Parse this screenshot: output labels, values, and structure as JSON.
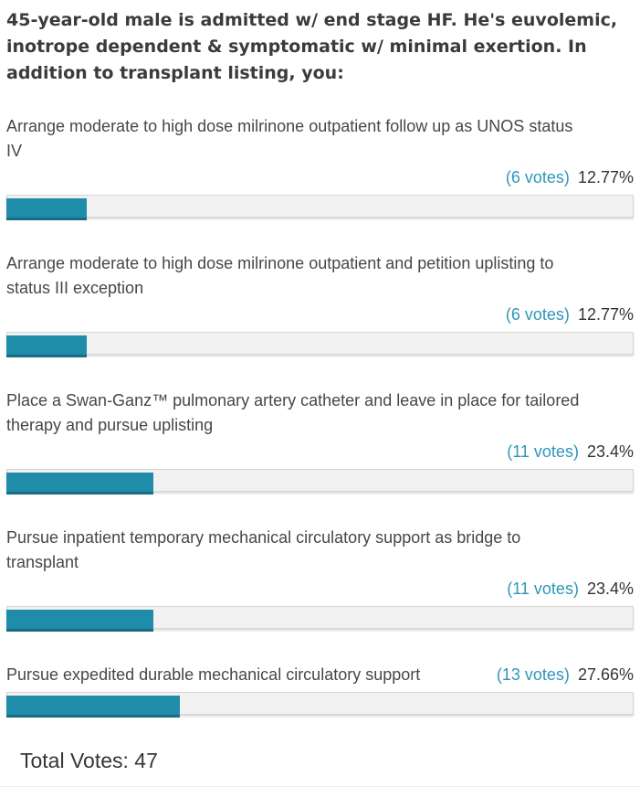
{
  "poll": {
    "question": "45-year-old male is admitted w/ end stage HF. He's euvolemic,\ninotrope dependent & symptomatic w/ minimal exertion. In\naddition to transplant listing, you:",
    "options": [
      {
        "text": "Arrange moderate to high dose milrinone outpatient follow up as UNOS status\nIV",
        "votes_label": "(6 votes)",
        "percent_label": "12.77%",
        "bar_width": "12.77%"
      },
      {
        "text": "Arrange moderate to high dose milrinone outpatient and petition uplisting to\nstatus III exception",
        "votes_label": "(6 votes)",
        "percent_label": "12.77%",
        "bar_width": "12.77%"
      },
      {
        "text": "Place a Swan-Ganz™ pulmonary artery catheter and leave in place for tailored\ntherapy and pursue uplisting",
        "votes_label": "(11 votes)",
        "percent_label": "23.4%",
        "bar_width": "23.4%"
      },
      {
        "text": "Pursue inpatient temporary mechanical circulatory support as bridge to\ntransplant",
        "votes_label": "(11 votes)",
        "percent_label": "23.4%",
        "bar_width": "23.4%"
      },
      {
        "text": "Pursue expedited durable mechanical circulatory support",
        "votes_label": "(13 votes)",
        "percent_label": "27.66%",
        "bar_width": "27.66%"
      }
    ],
    "total_label": "Total Votes: 47"
  },
  "colors": {
    "bar_fill": "#1f8ca9",
    "bar_track": "#f1f1f1",
    "votes_text": "#2e96bb",
    "percent_text": "#333333",
    "question_text": "#3b3b3b"
  },
  "chart_data": {
    "type": "bar",
    "title": "45-year-old male is admitted w/ end stage HF. He's euvolemic, inotrope dependent & symptomatic w/ minimal exertion. In addition to transplant listing, you:",
    "categories": [
      "Arrange moderate to high dose milrinone outpatient follow up as UNOS status IV",
      "Arrange moderate to high dose milrinone outpatient and petition uplisting to status III exception",
      "Place a Swan-Ganz™ pulmonary artery catheter and leave in place for tailored therapy and pursue uplisting",
      "Pursue inpatient temporary mechanical circulatory support as bridge to transplant",
      "Pursue expedited durable mechanical circulatory support"
    ],
    "values": [
      6,
      6,
      11,
      11,
      13
    ],
    "percentages": [
      12.77,
      12.77,
      23.4,
      23.4,
      27.66
    ],
    "total_votes": 47,
    "xlabel": "",
    "ylabel": "votes",
    "orientation": "horizontal"
  }
}
